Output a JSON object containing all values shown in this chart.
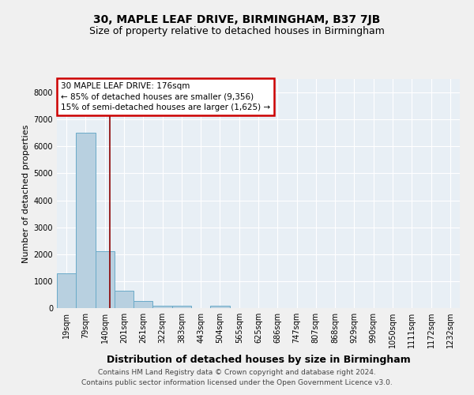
{
  "title": "30, MAPLE LEAF DRIVE, BIRMINGHAM, B37 7JB",
  "subtitle": "Size of property relative to detached houses in Birmingham",
  "xlabel": "Distribution of detached houses by size in Birmingham",
  "ylabel": "Number of detached properties",
  "categories": [
    "19sqm",
    "79sqm",
    "140sqm",
    "201sqm",
    "261sqm",
    "322sqm",
    "383sqm",
    "443sqm",
    "504sqm",
    "565sqm",
    "625sqm",
    "686sqm",
    "747sqm",
    "807sqm",
    "868sqm",
    "929sqm",
    "990sqm",
    "1050sqm",
    "1111sqm",
    "1172sqm",
    "1232sqm"
  ],
  "values": [
    1300,
    6500,
    2100,
    650,
    270,
    100,
    75,
    0,
    75,
    0,
    0,
    0,
    0,
    0,
    0,
    0,
    0,
    0,
    0,
    0,
    0
  ],
  "bar_color": "#b8d0e0",
  "bar_edge_color": "#6aaac8",
  "ylim": [
    0,
    8500
  ],
  "yticks": [
    0,
    1000,
    2000,
    3000,
    4000,
    5000,
    6000,
    7000,
    8000
  ],
  "property_line_x": 2.27,
  "property_line_color": "#8b0000",
  "annotation_text": "30 MAPLE LEAF DRIVE: 176sqm\n← 85% of detached houses are smaller (9,356)\n15% of semi-detached houses are larger (1,625) →",
  "annotation_box_color": "#cc0000",
  "footnote1": "Contains HM Land Registry data © Crown copyright and database right 2024.",
  "footnote2": "Contains public sector information licensed under the Open Government Licence v3.0.",
  "bg_color": "#e8eff5",
  "grid_color": "#ffffff",
  "title_fontsize": 10,
  "subtitle_fontsize": 9,
  "xlabel_fontsize": 9,
  "ylabel_fontsize": 8,
  "tick_fontsize": 7,
  "annotation_fontsize": 7.5,
  "footnote_fontsize": 6.5
}
